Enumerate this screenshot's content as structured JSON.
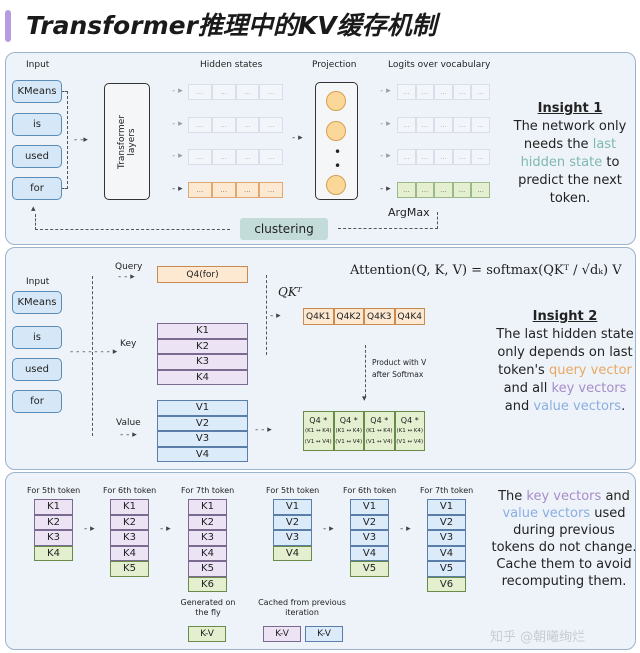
{
  "title": "Transformer推理中的KV缓存机制",
  "colors": {
    "accent": "#b79be0",
    "panel_bg": "#eef3fa",
    "query": "#e8a860",
    "key": "#a88cc8",
    "value": "#8aaee0",
    "highlight": "#7fb8b0",
    "new": "#e3efcf"
  },
  "p1": {
    "input_label": "Input",
    "inputs": [
      "KMeans",
      "is",
      "used",
      "for"
    ],
    "transformer": "Transformer layers",
    "hidden_label": "Hidden states",
    "projection_label": "Projection",
    "logits_label": "Logits over vocabulary",
    "cell_text": "...",
    "argmax": "ArgMax",
    "clustering": "clustering",
    "insight_title": "Insight 1",
    "insight_pre": "The network only needs the",
    "insight_hl": "last hidden state",
    "insight_post": "to predict the next token."
  },
  "p2": {
    "input_label": "Input",
    "inputs": [
      "KMeans",
      "is",
      "used",
      "for"
    ],
    "query_label": "Query",
    "key_label": "Key",
    "value_label": "Value",
    "q": "Q4(for)",
    "keys": [
      "K1",
      "K2",
      "K3",
      "K4"
    ],
    "values": [
      "V1",
      "V2",
      "V3",
      "V4"
    ],
    "qkt": "QKᵀ",
    "scores": [
      "Q4K1",
      "Q4K2",
      "Q4K3",
      "Q4K4"
    ],
    "product_label": "Product with V after Softmax",
    "result_top": "Q4 *",
    "result_k": "(K1 ↔ K4)",
    "result_v": "(V1 ↔ V4)",
    "formula": "Attention(Q, K, V) = softmax(QKᵀ / √dₖ) V",
    "insight_title": "Insight 2",
    "insight_a": "The last hidden state only depends on last token's",
    "insight_q": "query vector",
    "insight_b": "and all",
    "insight_k": "key vectors",
    "insight_c": "and",
    "insight_v": "value vectors",
    "insight_d": "."
  },
  "p3": {
    "columns": [
      {
        "label": "For 5th token",
        "items": [
          "K1",
          "K2",
          "K3",
          "K4"
        ],
        "kind": "k"
      },
      {
        "label": "For 6th token",
        "items": [
          "K1",
          "K2",
          "K3",
          "K4",
          "K5"
        ],
        "kind": "k"
      },
      {
        "label": "For 7th token",
        "items": [
          "K1",
          "K2",
          "K3",
          "K4",
          "K5",
          "K6"
        ],
        "kind": "k"
      },
      {
        "label": "For 5th token",
        "items": [
          "V1",
          "V2",
          "V3",
          "V4"
        ],
        "kind": "v"
      },
      {
        "label": "For 6th token",
        "items": [
          "V1",
          "V2",
          "V3",
          "V4",
          "V5"
        ],
        "kind": "v"
      },
      {
        "label": "For 7th token",
        "items": [
          "V1",
          "V2",
          "V3",
          "V4",
          "V5",
          "V6"
        ],
        "kind": "v"
      }
    ],
    "legend_new": "Generated on the fly",
    "legend_cached": "Cached from previous iteration",
    "kv": "K-V",
    "text_a": "The",
    "text_k": "key vectors",
    "text_b": "and",
    "text_v": "value vectors",
    "text_c": "used during previous tokens do not change. Cache them to avoid recomputing them."
  },
  "watermark": "知乎 @朝曦绚烂"
}
